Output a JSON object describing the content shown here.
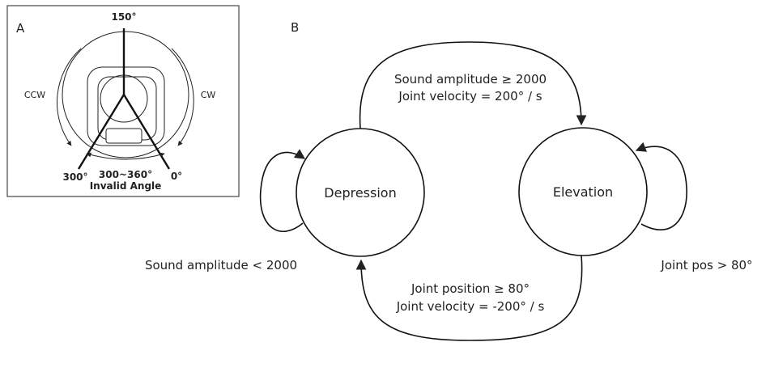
{
  "panel_a": {
    "label": "A",
    "angle_top": "150°",
    "angle_left": "300°",
    "angle_right": "0°",
    "range": "300~360°",
    "invalid": "Invalid Angle",
    "ccw": "CCW",
    "cw": "CW"
  },
  "panel_b": {
    "label": "B",
    "states": {
      "depression": "Depression",
      "elevation": "Elevation"
    },
    "transition_up": {
      "line1": "Sound amplitude ≥ 2000",
      "line2": "Joint velocity = 200° / s"
    },
    "transition_down": {
      "line1": "Joint position ≥ 80°",
      "line2": "Joint velocity = -200° / s"
    },
    "self_loop_depression": "Sound amplitude < 2000",
    "self_loop_elevation": "Joint pos > 80°"
  }
}
